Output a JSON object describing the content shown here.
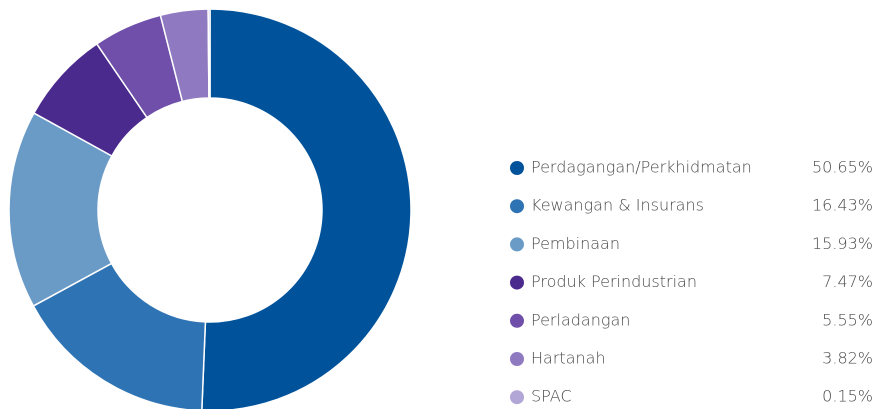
{
  "chart_data": {
    "type": "donut",
    "categories": [
      "Perdagangan/Perkhidmatan",
      "Kewangan & Insurans",
      "Pembinaan",
      "Produk Perindustrian",
      "Perladangan",
      "Hartanah",
      "SPAC"
    ],
    "values": [
      50.65,
      16.43,
      15.93,
      7.47,
      5.55,
      3.82,
      0.15
    ],
    "value_labels": [
      "50.65%",
      "16.43%",
      "15.93%",
      "7.47%",
      "5.55%",
      "3.82%",
      "0.15%"
    ],
    "colors": [
      "#00529b",
      "#2e73b3",
      "#6a9bc7",
      "#4b2a8e",
      "#6f4fa9",
      "#8f7ac1",
      "#b2a6d6"
    ],
    "legend": "right"
  }
}
